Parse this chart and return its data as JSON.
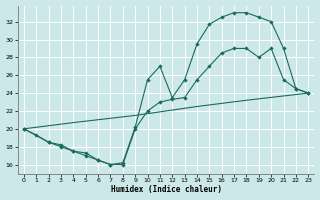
{
  "xlabel": "Humidex (Indice chaleur)",
  "bg_color": "#cce8e8",
  "line_color": "#1a6b5a",
  "grid_color": "#b8d8d8",
  "xlim": [
    -0.5,
    23.5
  ],
  "ylim": [
    15.0,
    33.8
  ],
  "xticks": [
    0,
    1,
    2,
    3,
    4,
    5,
    6,
    7,
    8,
    9,
    10,
    11,
    12,
    13,
    14,
    15,
    16,
    17,
    18,
    19,
    20,
    21,
    22,
    23
  ],
  "yticks": [
    16,
    18,
    20,
    22,
    24,
    26,
    28,
    30,
    32
  ],
  "line1_x": [
    0,
    1,
    2,
    3,
    4,
    5,
    6,
    7,
    8,
    9,
    10,
    11,
    12,
    13,
    14,
    15,
    16,
    17,
    18,
    19,
    20,
    21,
    22,
    23
  ],
  "line1_y": [
    20.0,
    19.3,
    18.5,
    18.2,
    17.5,
    17.3,
    16.5,
    16.0,
    16.2,
    20.2,
    25.5,
    27.0,
    23.5,
    25.5,
    29.5,
    31.7,
    32.5,
    33.0,
    33.0,
    32.5,
    32.0,
    29.0,
    24.5,
    24.0
  ],
  "line2_x": [
    0,
    2,
    3,
    4,
    5,
    6,
    7,
    8,
    9,
    10,
    11,
    12,
    13,
    14,
    15,
    16,
    17,
    18,
    19,
    20,
    21,
    22,
    23
  ],
  "line2_y": [
    20.0,
    18.5,
    18.0,
    17.5,
    17.0,
    16.5,
    16.0,
    16.0,
    20.0,
    22.0,
    23.0,
    23.3,
    23.5,
    25.5,
    27.0,
    28.5,
    29.0,
    29.0,
    28.0,
    29.0,
    25.5,
    24.5,
    24.0
  ],
  "line3_x": [
    0,
    4,
    9,
    14,
    18,
    23
  ],
  "line3_y": [
    20.0,
    20.7,
    21.5,
    22.5,
    23.2,
    24.0
  ]
}
